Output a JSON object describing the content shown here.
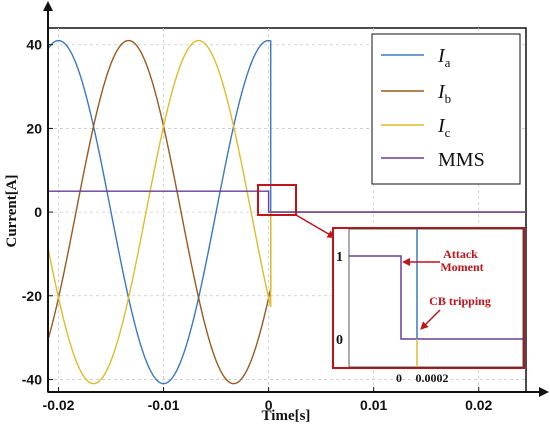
{
  "chart_data": {
    "type": "line",
    "xlabel": "Time[s]",
    "ylabel": "Current[A]",
    "xlim": [
      -0.021,
      0.0245
    ],
    "ylim": [
      -43,
      44
    ],
    "x_ticks": [
      -0.02,
      -0.01,
      0,
      0.01,
      0.02
    ],
    "x_tick_labels": [
      "-0.02",
      "-0.01",
      "0",
      "0.01",
      "0.02"
    ],
    "y_ticks": [
      -40,
      -20,
      0,
      20,
      40
    ],
    "y_tick_labels": [
      "-40",
      "-20",
      "0",
      "20",
      "40"
    ],
    "grid": true,
    "legend_position": "top-right",
    "series": [
      {
        "name": "I",
        "sub": "a",
        "color": "#3b78c2",
        "kind": "sine",
        "amplitude": 41,
        "frequency": 50,
        "phase_deg": 90,
        "trip_time": 0.0002,
        "after_value": 0
      },
      {
        "name": "I",
        "sub": "b",
        "color": "#9a5a1f",
        "kind": "sine",
        "amplitude": 41,
        "frequency": 50,
        "phase_deg": -30,
        "trip_time": 0.0002,
        "after_value": 0
      },
      {
        "name": "I",
        "sub": "c",
        "color": "#e0bc2a",
        "kind": "sine",
        "amplitude": 41,
        "frequency": 50,
        "phase_deg": 210,
        "trip_time": 0.0002,
        "after_value": 0
      },
      {
        "name": "MMS",
        "color": "#6a3d9a",
        "kind": "step",
        "x": [
          -0.021,
          0,
          0,
          0.0245
        ],
        "y": [
          5,
          5,
          0,
          0
        ]
      }
    ],
    "inset": {
      "y_tick_labels": [
        "1",
        "0"
      ],
      "x_tick_labels": [
        "0",
        "0.0002"
      ],
      "annotations": [
        "Attack\nMoment",
        "CB tripping"
      ]
    }
  },
  "colors": {
    "highlight": "#c0141a"
  }
}
